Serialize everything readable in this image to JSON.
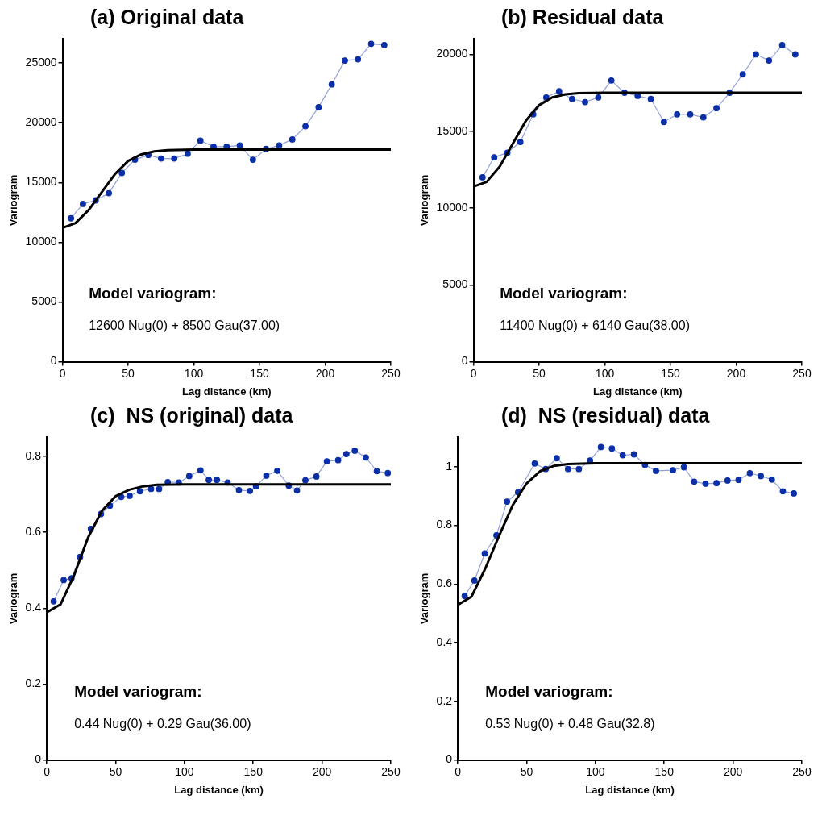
{
  "chart_data": [
    {
      "type": "line",
      "title": "(a) Original data",
      "xlabel": "Lag distance (km)",
      "ylabel": "Variogram",
      "annotations": [
        "Model variogram:",
        "12600 Nug(0) + 8500 Gau(37.00)"
      ],
      "xlim": [
        0,
        250
      ],
      "xticks": [
        0,
        50,
        100,
        150,
        200,
        250
      ],
      "ylim": [
        0,
        27000
      ],
      "yticks": [
        0,
        5000,
        10000,
        15000,
        20000,
        25000
      ],
      "series": [
        {
          "type": "line",
          "color": "#0a2fa8",
          "marker": "circle",
          "x": [
            6.5,
            15.6,
            25.3,
            35.3,
            45.2,
            55.2,
            65.4,
            75.1,
            85.1,
            95.3,
            105,
            115,
            125,
            135,
            145,
            155,
            165,
            175,
            185,
            195,
            205,
            215,
            225,
            235,
            245
          ],
          "values": [
            12000,
            13200,
            13500,
            14100,
            15800,
            16900,
            17300,
            17000,
            17000,
            17400,
            18500,
            18000,
            18000,
            18100,
            16900,
            17800,
            18100,
            18600,
            19700,
            21300,
            23200,
            25200,
            25300,
            26600,
            26500
          ]
        },
        {
          "type": "line",
          "color": "#000000",
          "marker": "none",
          "x": [
            0,
            10,
            20,
            30,
            40,
            50,
            60,
            70,
            80,
            100,
            250
          ],
          "values": [
            11200,
            11600,
            12700,
            14200,
            15700,
            16800,
            17350,
            17600,
            17700,
            17750,
            17750
          ]
        }
      ]
    },
    {
      "type": "line",
      "title": "(b) Residual data",
      "xlabel": "Lag distance (km)",
      "ylabel": "Variogram",
      "annotations": [
        "Model variogram:",
        "11400 Nug(0) + 6140 Gau(38.00)"
      ],
      "xlim": [
        0,
        250
      ],
      "xticks": [
        0,
        50,
        100,
        150,
        200,
        250
      ],
      "ylim": [
        0,
        21000
      ],
      "yticks": [
        0,
        5000,
        10000,
        15000,
        20000
      ],
      "series": [
        {
          "type": "line",
          "color": "#0a2fa8",
          "marker": "circle",
          "x": [
            6.9,
            15.8,
            25.8,
            35.7,
            45.5,
            55.4,
            65.2,
            75.1,
            85,
            95,
            105,
            115,
            125,
            135,
            145,
            155,
            165,
            175,
            185,
            195,
            205,
            215,
            225,
            235,
            245
          ],
          "values": [
            12000,
            13300,
            13600,
            14300,
            16100,
            17200,
            17600,
            17100,
            16900,
            17200,
            18300,
            17500,
            17300,
            17100,
            15600,
            16100,
            16100,
            15900,
            16500,
            17500,
            18700,
            20000,
            19600,
            20600,
            20000
          ]
        },
        {
          "type": "line",
          "color": "#000000",
          "marker": "none",
          "x": [
            0,
            10,
            20,
            30,
            40,
            50,
            60,
            70,
            80,
            100,
            250
          ],
          "values": [
            11400,
            11700,
            12700,
            14200,
            15700,
            16700,
            17200,
            17400,
            17480,
            17500,
            17500
          ]
        }
      ]
    },
    {
      "type": "line",
      "title": "(c)  NS (original) data",
      "xlabel": "Lag distance (km)",
      "ylabel": "Variogram",
      "annotations": [
        "Model variogram:",
        "0.44 Nug(0) + 0.29 Gau(36.00)"
      ],
      "xlim": [
        0,
        250
      ],
      "xticks": [
        0,
        50,
        100,
        150,
        200,
        250
      ],
      "ylim": [
        0,
        0.85
      ],
      "yticks": [
        0,
        0.2,
        0.4,
        0.6,
        0.8
      ],
      "series": [
        {
          "type": "line",
          "color": "#0a2fa8",
          "marker": "circle",
          "x": [
            5,
            12.3,
            18,
            24.2,
            32,
            39.4,
            45.9,
            54.1,
            60.2,
            67.7,
            75.8,
            81.6,
            87.9,
            95.9,
            103.5,
            111.7,
            117.7,
            123.6,
            131.4,
            139.6,
            147.6,
            152,
            159.5,
            167.5,
            175.8,
            181.8,
            187.9,
            195.9,
            203.5,
            211.7,
            217.7,
            223.8,
            231.8,
            239.8,
            247.8
          ],
          "values": [
            0.418,
            0.474,
            0.479,
            0.535,
            0.609,
            0.648,
            0.67,
            0.693,
            0.696,
            0.708,
            0.714,
            0.714,
            0.732,
            0.731,
            0.748,
            0.763,
            0.738,
            0.738,
            0.731,
            0.711,
            0.709,
            0.721,
            0.749,
            0.762,
            0.723,
            0.71,
            0.737,
            0.747,
            0.787,
            0.79,
            0.806,
            0.815,
            0.797,
            0.761,
            0.756
          ]
        },
        {
          "type": "line",
          "color": "#000000",
          "marker": "none",
          "x": [
            0,
            10,
            20,
            30,
            40,
            50,
            60,
            70,
            80,
            100,
            250
          ],
          "values": [
            0.389,
            0.41,
            0.488,
            0.586,
            0.656,
            0.695,
            0.712,
            0.721,
            0.725,
            0.726,
            0.726
          ]
        }
      ]
    },
    {
      "type": "line",
      "title": "(d)  NS (residual) data",
      "xlabel": "Lag distance (km)",
      "ylabel": "Variogram",
      "annotations": [
        "Model variogram:",
        "0.53 Nug(0) + 0.48 Gau(32.8)"
      ],
      "xlim": [
        0,
        250
      ],
      "xticks": [
        0,
        50,
        100,
        150,
        200,
        250
      ],
      "ylim": [
        0,
        1.1
      ],
      "yticks": [
        0,
        0.2,
        0.4,
        0.6,
        0.8,
        {
          "value": 1,
          "label": "1"
        }
      ],
      "series": [
        {
          "type": "line",
          "color": "#0a2fa8",
          "marker": "circle",
          "x": [
            5,
            12.1,
            19.6,
            28.1,
            35.8,
            43.8,
            55.9,
            63.9,
            71.9,
            80.1,
            88,
            96.1,
            104,
            112,
            119.8,
            128,
            136,
            144,
            156.3,
            164.3,
            171.8,
            180,
            188,
            196,
            204,
            212.2,
            220.2,
            228.2,
            236.2,
            244.2
          ],
          "values": [
            0.559,
            0.612,
            0.704,
            0.766,
            0.881,
            0.913,
            1.011,
            0.992,
            1.029,
            0.992,
            0.992,
            1.021,
            1.067,
            1.062,
            1.039,
            1.042,
            1.006,
            0.986,
            0.988,
            0.998,
            0.949,
            0.942,
            0.944,
            0.953,
            0.955,
            0.978,
            0.968,
            0.956,
            0.916,
            0.909
          ]
        },
        {
          "type": "line",
          "color": "#000000",
          "marker": "none",
          "x": [
            0,
            10,
            20,
            30,
            40,
            50,
            60,
            70,
            80,
            100,
            250
          ],
          "values": [
            0.529,
            0.557,
            0.653,
            0.764,
            0.87,
            0.943,
            0.985,
            1.003,
            1.009,
            1.012,
            1.012
          ]
        }
      ]
    }
  ]
}
